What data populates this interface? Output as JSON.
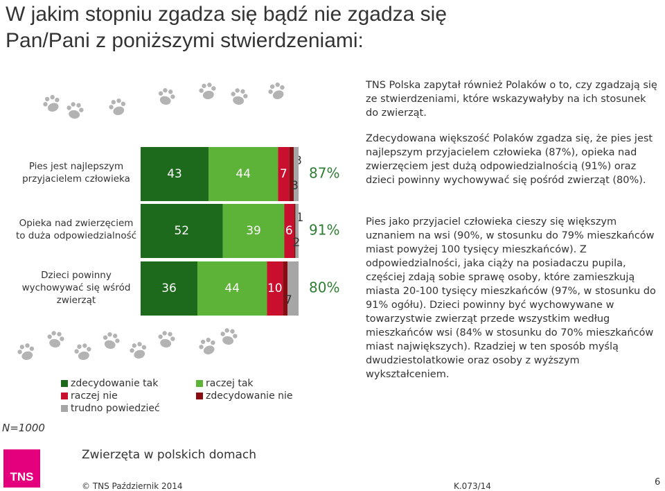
{
  "header": {
    "title": "W jakim stopniu zgadza się bądź nie zgadza się Pan/Pani z poniższymi stwierdzeniami:"
  },
  "chart_data": {
    "type": "stacked-bar",
    "categories": [
      "Pies jest najlepszym przyjacielem człowieka",
      "Opieka nad zwierzęciem to duża odpowiedzialność",
      "Dzieci powinny wychowywać się wśród zwierząt"
    ],
    "series": [
      {
        "name": "zdecydowanie tak",
        "color": "#1d6a1d",
        "values": [
          43,
          52,
          36
        ]
      },
      {
        "name": "raczej tak",
        "color": "#5cb337",
        "values": [
          44,
          39,
          44
        ]
      },
      {
        "name": "raczej nie",
        "color": "#c8102e",
        "values": [
          7,
          6,
          10
        ]
      },
      {
        "name": "zdecydowanie nie",
        "color": "#8a0c12",
        "values": [
          3,
          1,
          3
        ]
      },
      {
        "name": "trudno powiedzieć",
        "color": "#a6a6a6",
        "values": [
          3,
          2,
          7
        ]
      }
    ],
    "summary": {
      "values": [
        87,
        91,
        80
      ],
      "value_labels": [
        "87%",
        "91%",
        "80%"
      ],
      "color": "#2e7d32"
    },
    "note": "N=1000"
  },
  "text": {
    "intro": "TNS Polska zapytał również Polaków o to, czy zgadzają się ze stwierdzeniami, które wskazywałyby na ich stosunek do zwierząt.",
    "para1": "Zdecydowana większość Polaków zgadza się, że pies jest najlepszym przyjacielem człowieka (87%), opieka nad zwierzęciem jest dużą odpowiedzialnością (91%) oraz dzieci powinny wychowywać się pośród zwierząt (80%).",
    "para2": "Pies jako przyjaciel człowieka cieszy się większym uznaniem na wsi (90%, w stosunku do 79% mieszkańców miast powyżej 100 tysięcy mieszkańców). Z odpowiedzialności, jaka ciąży na posiadaczu pupila, częściej zdają sobie sprawę osoby, które zamieszkują miasta 20-100 tysięcy mieszkańców (97%, w stosunku do 91% ogółu). Dzieci powinny być wychowywane w towarzystwie zwierząt przede wszystkim według mieszkańców wsi (84% w stosunku do 70% mieszkańców miast największych). Rzadziej w ten sposób myślą dwudziestolatkowie oraz osoby z wyższym wykształceniem."
  },
  "footer": {
    "section": "Zwierzęta w polskich domach",
    "logo": "TNS",
    "copyright": "© TNS Październik 2014",
    "code": "K.073/14",
    "page": "6"
  }
}
